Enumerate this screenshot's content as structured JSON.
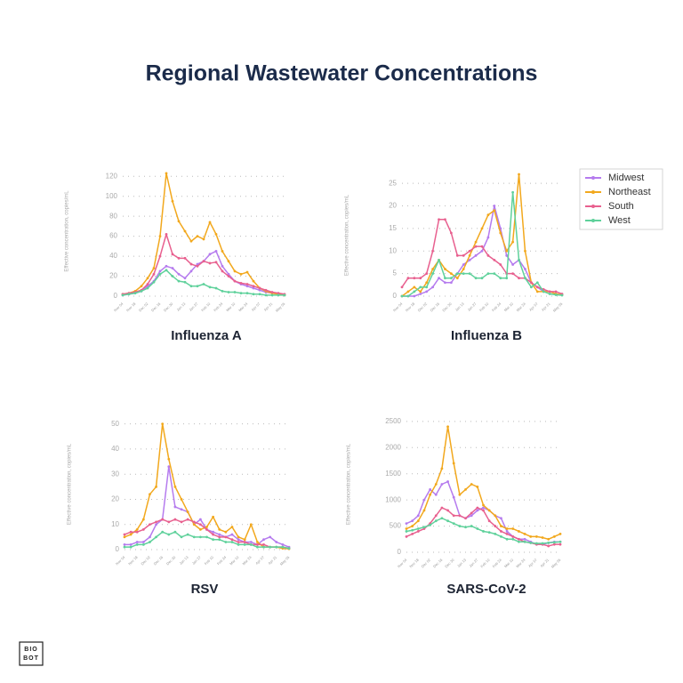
{
  "title": "Regional  Wastewater Concentrations",
  "logo": [
    "BIO",
    "BOT"
  ],
  "chart_data": [
    {
      "type": "line",
      "title": "Influenza A",
      "y_label": "Effective concentration, copies/mL",
      "grid": true,
      "markers": true,
      "categories": [
        "Nov 04",
        null,
        "Nov 18",
        null,
        "Dec 02",
        null,
        "Dec 16",
        null,
        "Dec 30",
        null,
        "Jan 13",
        null,
        "Jan 27",
        null,
        "Feb 10",
        null,
        "Feb 24",
        null,
        "Mar 10",
        null,
        "Mar 24",
        null,
        "Apr 07",
        null,
        "Apr 21",
        null,
        "May 05"
      ],
      "ylim": [
        0,
        130
      ],
      "yticks": [
        0,
        20,
        40,
        60,
        80,
        100,
        120
      ],
      "series": [
        {
          "name": "Midwest",
          "color": "#b57bee",
          "values": [
            1,
            2,
            3,
            5,
            10,
            15,
            25,
            30,
            28,
            22,
            18,
            25,
            32,
            35,
            42,
            45,
            30,
            22,
            15,
            12,
            10,
            8,
            6,
            4,
            3,
            2,
            1
          ]
        },
        {
          "name": "Northeast",
          "color": "#f2a81d",
          "values": [
            2,
            3,
            5,
            10,
            18,
            28,
            60,
            123,
            95,
            75,
            65,
            55,
            60,
            57,
            74,
            62,
            45,
            35,
            25,
            22,
            24,
            15,
            8,
            5,
            3,
            2,
            1
          ]
        },
        {
          "name": "South",
          "color": "#e8608f",
          "values": [
            2,
            3,
            4,
            6,
            12,
            22,
            40,
            62,
            42,
            38,
            38,
            32,
            30,
            35,
            33,
            34,
            25,
            20,
            15,
            13,
            12,
            10,
            8,
            6,
            4,
            3,
            2
          ]
        },
        {
          "name": "West",
          "color": "#5fd19b",
          "values": [
            1,
            2,
            3,
            5,
            8,
            14,
            22,
            26,
            20,
            15,
            14,
            10,
            10,
            12,
            9,
            8,
            5,
            4,
            4,
            3,
            3,
            2,
            2,
            1,
            1,
            1,
            1
          ]
        }
      ]
    },
    {
      "type": "line",
      "title": "Influenza B",
      "y_label": "Effective concentration, copies/mL",
      "grid": true,
      "markers": true,
      "legend": "outside-right",
      "categories": [
        "Nov 04",
        null,
        "Nov 18",
        null,
        "Dec 02",
        null,
        "Dec 16",
        null,
        "Dec 30",
        null,
        "Jan 13",
        null,
        "Jan 27",
        null,
        "Feb 10",
        null,
        "Feb 24",
        null,
        "Mar 10",
        null,
        "Mar 24",
        null,
        "Apr 07",
        null,
        "Apr 21",
        null,
        "May 05"
      ],
      "ylim": [
        0,
        27
      ],
      "yticks": [
        0,
        5,
        10,
        15,
        20,
        25
      ],
      "series": [
        {
          "name": "Midwest",
          "color": "#b57bee",
          "values": [
            0,
            0,
            0,
            0.5,
            1,
            2,
            4,
            3,
            3,
            5,
            7,
            8,
            9,
            10,
            13,
            20,
            15,
            9,
            7,
            8,
            6,
            3,
            2,
            1,
            1,
            0.5,
            0.3
          ]
        },
        {
          "name": "Northeast",
          "color": "#f2a81d",
          "values": [
            0,
            1,
            2,
            1,
            3,
            6,
            8,
            6,
            5,
            4,
            6,
            9,
            12,
            15,
            18,
            19,
            14,
            10,
            12,
            27,
            10,
            3,
            1,
            1,
            1,
            0.5,
            0.3
          ]
        },
        {
          "name": "South",
          "color": "#e8608f",
          "values": [
            2,
            4,
            4,
            4,
            5,
            10,
            17,
            17,
            14,
            9,
            9,
            10,
            11,
            11,
            9,
            8,
            7,
            5,
            5,
            4,
            4,
            3,
            2,
            1.5,
            1,
            1,
            0.5
          ]
        },
        {
          "name": "West",
          "color": "#5fd19b",
          "values": [
            0,
            0,
            1,
            2,
            2,
            5,
            8,
            4,
            4,
            5,
            5,
            5,
            4,
            4,
            5,
            5,
            4,
            4,
            23,
            8,
            4,
            2,
            3,
            1,
            0.5,
            0.3,
            0.2
          ]
        }
      ]
    },
    {
      "type": "line",
      "title": "RSV",
      "y_label": "Effective concentration, copies/mL",
      "grid": true,
      "markers": true,
      "categories": [
        "Nov 04",
        null,
        "Nov 18",
        null,
        "Dec 02",
        null,
        "Dec 16",
        null,
        "Dec 30",
        null,
        "Jan 13",
        null,
        "Jan 27",
        null,
        "Feb 10",
        null,
        "Feb 24",
        null,
        "Mar 10",
        null,
        "Mar 24",
        null,
        "Apr 07",
        null,
        "Apr 21",
        null,
        "May 05"
      ],
      "ylim": [
        0,
        52
      ],
      "yticks": [
        0,
        10,
        20,
        30,
        40,
        50
      ],
      "series": [
        {
          "name": "Midwest",
          "color": "#b57bee",
          "values": [
            2,
            2,
            3,
            3,
            5,
            10,
            12,
            33,
            17,
            16,
            15,
            10,
            12,
            8,
            7,
            6,
            5,
            6,
            4,
            3,
            3,
            2,
            4,
            5,
            3,
            2,
            1
          ]
        },
        {
          "name": "Northeast",
          "color": "#f2a81d",
          "values": [
            5,
            6,
            8,
            12,
            22,
            25,
            50,
            36,
            25,
            20,
            15,
            10,
            8,
            9,
            13,
            8,
            7,
            9,
            5,
            4,
            10,
            3,
            1,
            1,
            1,
            0.5,
            0.3
          ]
        },
        {
          "name": "South",
          "color": "#e8608f",
          "values": [
            6,
            7,
            7,
            8,
            10,
            11,
            12,
            11,
            12,
            11,
            12,
            11,
            10,
            8,
            6,
            5,
            5,
            4,
            3,
            3,
            2,
            2,
            2,
            1,
            1,
            1,
            0.5
          ]
        },
        {
          "name": "West",
          "color": "#5fd19b",
          "values": [
            1,
            1,
            2,
            2,
            3,
            5,
            7,
            6,
            7,
            5,
            6,
            5,
            5,
            5,
            4,
            4,
            3,
            3,
            2,
            2,
            2,
            1,
            1,
            1,
            1,
            1,
            0.5
          ]
        }
      ]
    },
    {
      "type": "line",
      "title": "SARS-CoV-2",
      "y_label": "Effective concentration, copies/mL",
      "grid": true,
      "markers": true,
      "categories": [
        "Nov 04",
        null,
        "Nov 18",
        null,
        "Dec 02",
        null,
        "Dec 16",
        null,
        "Dec 30",
        null,
        "Jan 13",
        null,
        "Jan 27",
        null,
        "Feb 10",
        null,
        "Feb 24",
        null,
        "Mar 10",
        null,
        "Mar 24",
        null,
        "Apr 07",
        null,
        "Apr 21",
        null,
        "May 05"
      ],
      "ylim": [
        0,
        2600
      ],
      "yticks": [
        0,
        500,
        1000,
        1500,
        2000,
        2500
      ],
      "series": [
        {
          "name": "Midwest",
          "color": "#b57bee",
          "values": [
            550,
            600,
            700,
            1000,
            1200,
            1100,
            1300,
            1350,
            1050,
            700,
            650,
            700,
            800,
            850,
            800,
            700,
            650,
            400,
            300,
            250,
            250,
            200,
            150,
            150,
            180,
            200,
            200
          ]
        },
        {
          "name": "Northeast",
          "color": "#f2a81d",
          "values": [
            450,
            500,
            600,
            800,
            1100,
            1300,
            1600,
            2400,
            1700,
            1100,
            1200,
            1300,
            1250,
            900,
            800,
            700,
            500,
            450,
            450,
            400,
            350,
            300,
            300,
            280,
            250,
            300,
            350
          ]
        },
        {
          "name": "South",
          "color": "#e8608f",
          "values": [
            300,
            350,
            400,
            450,
            550,
            700,
            850,
            800,
            700,
            700,
            650,
            750,
            850,
            800,
            600,
            500,
            400,
            350,
            300,
            250,
            200,
            180,
            150,
            150,
            120,
            150,
            150
          ]
        },
        {
          "name": "West",
          "color": "#5fd19b",
          "values": [
            400,
            420,
            450,
            480,
            520,
            600,
            650,
            600,
            550,
            500,
            480,
            500,
            450,
            400,
            380,
            350,
            300,
            250,
            250,
            200,
            200,
            180,
            170,
            170,
            180,
            190,
            200
          ]
        }
      ]
    }
  ]
}
